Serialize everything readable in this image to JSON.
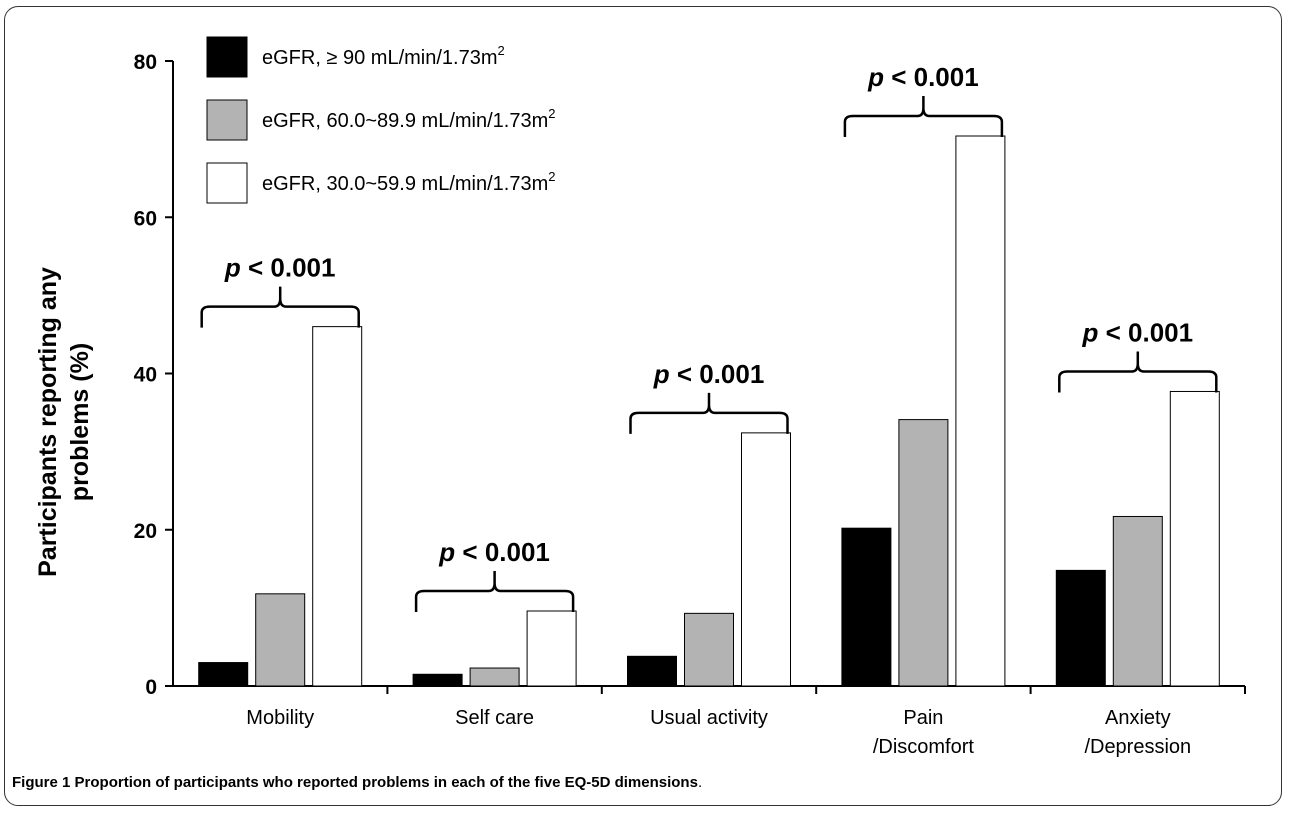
{
  "chart_data": {
    "type": "bar",
    "categories": [
      [
        "Mobility"
      ],
      [
        "Self care"
      ],
      [
        "Usual activity"
      ],
      [
        "Pain",
        "/Discomfort"
      ],
      [
        "Anxiety",
        "/Depression"
      ]
    ],
    "series": [
      {
        "name": "eGFR, ≥ 90 mL/min/1.73m",
        "sup": "2",
        "color": "#000000",
        "values": [
          3,
          1.5,
          3.8,
          20.2,
          14.8
        ]
      },
      {
        "name": "eGFR, 60.0~89.9 mL/min/1.73m",
        "sup": "2",
        "color": "#b3b3b3",
        "values": [
          11.8,
          2.3,
          9.3,
          34.1,
          21.7
        ]
      },
      {
        "name": "eGFR, 30.0~59.9 mL/min/1.73m",
        "sup": "2",
        "color": "#ffffff",
        "values": [
          46,
          9.6,
          32.4,
          70.4,
          37.7
        ]
      }
    ],
    "ylabel": [
      "Participants reporting any",
      "problems (%)"
    ],
    "ylim": [
      0,
      80
    ],
    "yticks": [
      0,
      20,
      40,
      60,
      80
    ],
    "annotations": [
      {
        "category": 0,
        "prefix": "p",
        "text": " < 0.001"
      },
      {
        "category": 1,
        "prefix": "p",
        "text": " < 0.001"
      },
      {
        "category": 2,
        "prefix": "p",
        "text": " < 0.001"
      },
      {
        "category": 3,
        "prefix": "p",
        "text": " < 0.001"
      },
      {
        "category": 4,
        "prefix": "p",
        "text": " < 0.001"
      }
    ],
    "legend_position": "top-left",
    "grid": false
  },
  "caption": {
    "label": "Figure 1",
    "text": " Proportion of participants who reported problems in each of the five EQ-5D dimensions",
    "end": "."
  }
}
